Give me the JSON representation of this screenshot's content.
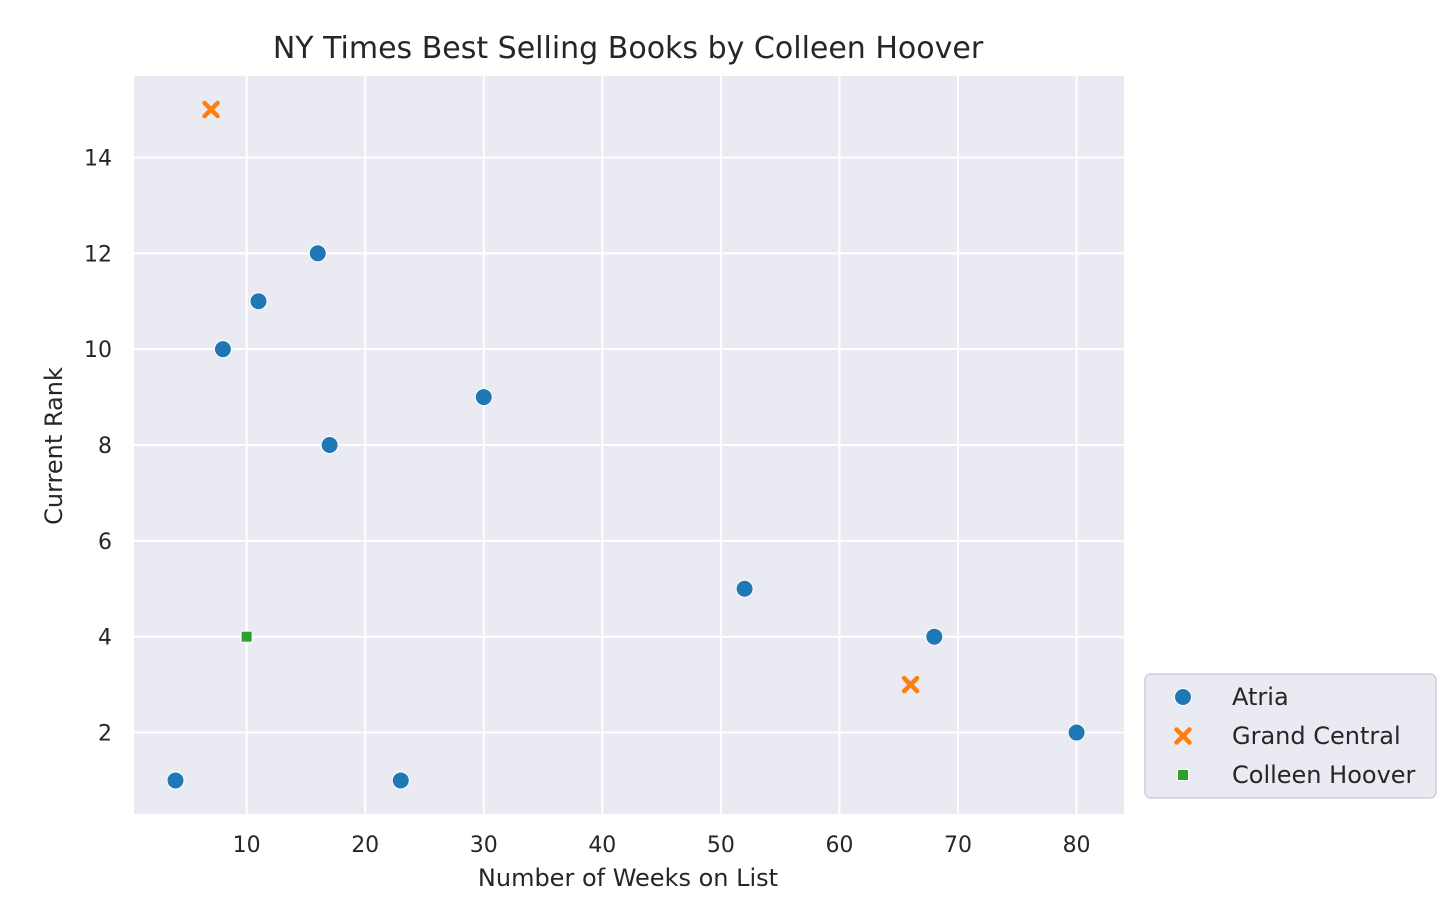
{
  "chart_data": {
    "type": "scatter",
    "title": "NY Times Best Selling Books by Colleen Hoover",
    "xlabel": "Number of Weeks on List",
    "ylabel": "Current Rank",
    "xlim": [
      0.5,
      84
    ],
    "ylim": [
      0.3,
      15.7
    ],
    "xticks": [
      10,
      20,
      30,
      40,
      50,
      60,
      70,
      80
    ],
    "yticks": [
      2,
      4,
      6,
      8,
      10,
      12,
      14
    ],
    "grid": true,
    "legend_position": "outside-lower-right",
    "background": "#eaeaf2",
    "series": [
      {
        "name": "Atria",
        "marker": "circle",
        "color": "#1f77b4",
        "points": [
          {
            "x": 4,
            "y": 1
          },
          {
            "x": 8,
            "y": 10
          },
          {
            "x": 11,
            "y": 11
          },
          {
            "x": 16,
            "y": 12
          },
          {
            "x": 17,
            "y": 8
          },
          {
            "x": 23,
            "y": 1
          },
          {
            "x": 30,
            "y": 9
          },
          {
            "x": 52,
            "y": 5
          },
          {
            "x": 68,
            "y": 4
          },
          {
            "x": 80,
            "y": 2
          }
        ]
      },
      {
        "name": "Grand Central",
        "marker": "x",
        "color": "#ff7f0e",
        "points": [
          {
            "x": 7,
            "y": 15
          },
          {
            "x": 66,
            "y": 3
          }
        ]
      },
      {
        "name": "Colleen Hoover",
        "marker": "square",
        "color": "#2ca02c",
        "points": [
          {
            "x": 10,
            "y": 4
          }
        ]
      }
    ]
  }
}
